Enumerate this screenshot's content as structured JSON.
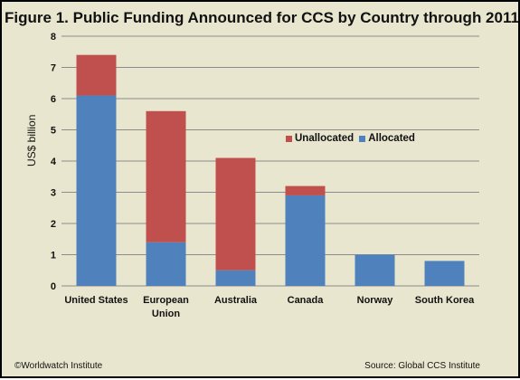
{
  "chart_data": {
    "type": "bar",
    "stacked": true,
    "title": "Figure 1. Public Funding Announced for CCS by Country through 2011",
    "ylabel": "US$ billion",
    "xlabel": "",
    "ylim": [
      0,
      8
    ],
    "yticks": [
      0,
      1,
      2,
      3,
      4,
      5,
      6,
      7,
      8
    ],
    "grid": true,
    "legend_position": "center-right",
    "categories": [
      [
        "United States"
      ],
      [
        "European",
        "Union"
      ],
      [
        "Australia"
      ],
      [
        "Canada"
      ],
      [
        "Norway"
      ],
      [
        "South Korea"
      ]
    ],
    "series": [
      {
        "name": "Allocated",
        "color": "#4f81bd",
        "values": [
          6.1,
          1.4,
          0.5,
          2.9,
          1.0,
          0.8
        ]
      },
      {
        "name": "Unallocated",
        "color": "#c0504d",
        "values": [
          1.3,
          4.2,
          3.6,
          0.3,
          0.0,
          0.0
        ]
      }
    ]
  },
  "legend_order": [
    "Unallocated",
    "Allocated"
  ],
  "footer": {
    "left": "©Worldwatch Institute",
    "right": "Source: Global CCS Institute"
  }
}
